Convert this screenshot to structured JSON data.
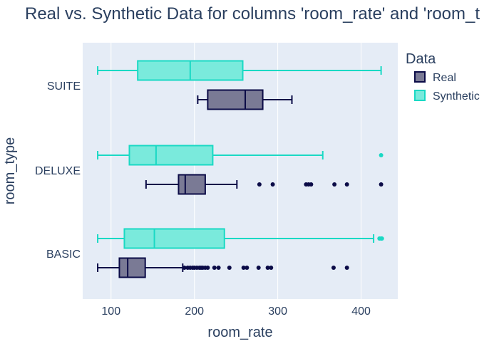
{
  "chart_data": {
    "type": "box",
    "orientation": "horizontal",
    "title": "Real vs. Synthetic Data for columns 'room_rate' and 'room_t",
    "xlabel": "room_rate",
    "ylabel": "room_type",
    "xlim": [
      66,
      444
    ],
    "xticks": [
      100,
      200,
      300,
      400
    ],
    "categories": [
      "BASIC",
      "DELUXE",
      "SUITE"
    ],
    "legend": {
      "title": "Data",
      "position": "top-right"
    },
    "grid": true,
    "series": [
      {
        "name": "Real",
        "fill": "#7a7a95",
        "line": "#0b0b47",
        "boxes": [
          {
            "category": "BASIC",
            "min": 84,
            "q1": 110,
            "median": 120,
            "q3": 141,
            "max": 186,
            "outliers": [
              188,
              192,
              195,
              198,
              200,
              203,
              206,
              208,
              210,
              213,
              216,
              224,
              229,
              242,
              259,
              263,
              277,
              288,
              292,
              367,
              383
            ]
          },
          {
            "category": "DELUXE",
            "min": 142,
            "q1": 181,
            "median": 189,
            "q3": 213,
            "max": 251,
            "outliers": [
              278,
              294,
              334,
              337,
              340,
              368,
              383,
              424
            ]
          },
          {
            "category": "SUITE",
            "min": 204,
            "q1": 216,
            "median": 261,
            "q3": 282,
            "max": 317,
            "outliers": []
          }
        ]
      },
      {
        "name": "Synthetic",
        "fill": "#7aeadc",
        "line": "#1ad9c4",
        "boxes": [
          {
            "category": "BASIC",
            "min": 84,
            "q1": 116,
            "median": 152,
            "q3": 236,
            "max": 415,
            "outliers": [
              422,
              424,
              425
            ]
          },
          {
            "category": "DELUXE",
            "min": 84,
            "q1": 122,
            "median": 154,
            "q3": 222,
            "max": 354,
            "outliers": [
              424
            ]
          },
          {
            "category": "SUITE",
            "min": 84,
            "q1": 132,
            "median": 195,
            "q3": 258,
            "max": 424,
            "outliers": []
          }
        ]
      }
    ]
  }
}
